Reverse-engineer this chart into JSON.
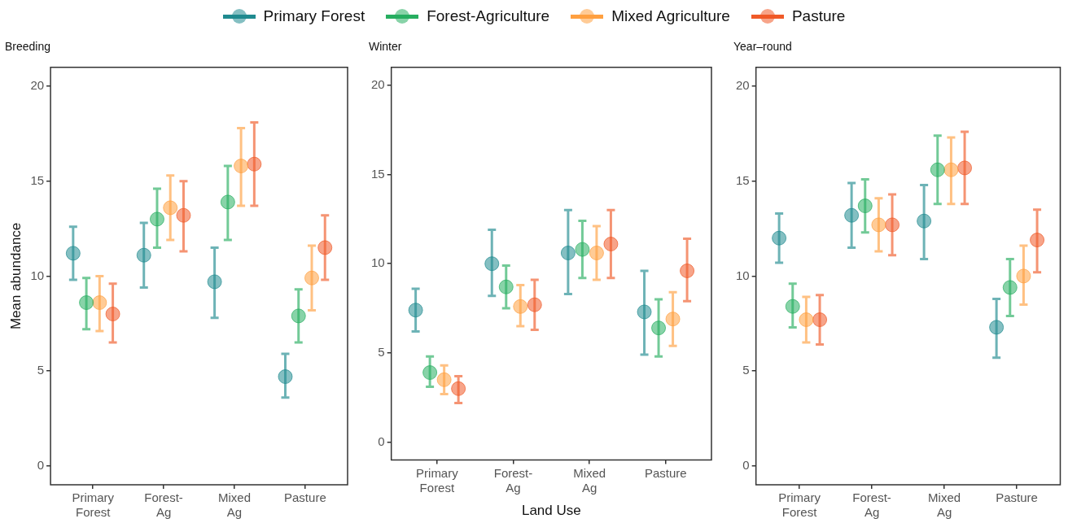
{
  "chart_data": [
    {
      "type": "scatter",
      "title": "Breeding",
      "ylabel": "Mean abundance",
      "categories": [
        "Primary\nForest",
        "Forest-\nAg",
        "Mixed\nAg",
        "Pasture"
      ],
      "ylim": [
        -1,
        21
      ],
      "yticks": [
        0,
        5,
        10,
        15,
        20
      ],
      "grid": false,
      "legend": "top",
      "marker": "circle",
      "series": [
        {
          "name": "Primary Forest",
          "color": "#1f8a8f",
          "values": [
            11.2,
            11.1,
            9.7,
            4.7
          ],
          "errors": [
            [
              9.8,
              12.6
            ],
            [
              9.4,
              12.8
            ],
            [
              7.8,
              11.5
            ],
            [
              3.6,
              5.9
            ]
          ]
        },
        {
          "name": "Forest-Agriculture",
          "color": "#27ae60",
          "values": [
            8.6,
            13.0,
            13.9,
            7.9
          ],
          "errors": [
            [
              7.2,
              9.9
            ],
            [
              11.5,
              14.6
            ],
            [
              11.9,
              15.8
            ],
            [
              6.5,
              9.3
            ]
          ]
        },
        {
          "name": "Mixed Agriculture",
          "color": "#ffa040",
          "values": [
            8.6,
            13.6,
            15.8,
            9.9
          ],
          "errors": [
            [
              7.1,
              10.0
            ],
            [
              11.9,
              15.3
            ],
            [
              13.7,
              17.8
            ],
            [
              8.2,
              11.6
            ]
          ]
        },
        {
          "name": "Pasture",
          "color": "#f05a28",
          "values": [
            8.0,
            13.2,
            15.9,
            11.5
          ],
          "errors": [
            [
              6.5,
              9.6
            ],
            [
              11.3,
              15.0
            ],
            [
              13.7,
              18.1
            ],
            [
              9.8,
              13.2
            ]
          ]
        }
      ]
    },
    {
      "type": "scatter",
      "title": "Winter",
      "xlabel": "Land Use",
      "categories": [
        "Primary\nForest",
        "Forest-\nAg",
        "Mixed\nAg",
        "Pasture"
      ],
      "ylim": [
        -1,
        21
      ],
      "yticks": [
        0,
        5,
        10,
        15,
        20
      ],
      "grid": false,
      "marker": "circle",
      "series": [
        {
          "color": "#1f8a8f",
          "values": [
            7.4,
            10.0,
            10.6,
            7.3
          ],
          "errors": [
            [
              6.2,
              8.6
            ],
            [
              8.2,
              11.9
            ],
            [
              8.3,
              13.0
            ],
            [
              4.9,
              9.6
            ]
          ]
        },
        {
          "color": "#27ae60",
          "values": [
            3.9,
            8.7,
            10.8,
            6.4
          ],
          "errors": [
            [
              3.1,
              4.8
            ],
            [
              7.5,
              9.9
            ],
            [
              9.2,
              12.4
            ],
            [
              4.8,
              8.0
            ]
          ]
        },
        {
          "color": "#ffa040",
          "values": [
            3.5,
            7.6,
            10.6,
            6.9
          ],
          "errors": [
            [
              2.7,
              4.3
            ],
            [
              6.5,
              8.8
            ],
            [
              9.1,
              12.1
            ],
            [
              5.4,
              8.4
            ]
          ]
        },
        {
          "color": "#f05a28",
          "values": [
            3.0,
            7.7,
            11.1,
            9.6
          ],
          "errors": [
            [
              2.2,
              3.7
            ],
            [
              6.3,
              9.1
            ],
            [
              9.2,
              13.0
            ],
            [
              7.9,
              11.4
            ]
          ]
        }
      ]
    },
    {
      "type": "scatter",
      "title": "Year–round",
      "categories": [
        "Primary\nForest",
        "Forest-\nAg",
        "Mixed\nAg",
        "Pasture"
      ],
      "ylim": [
        -1,
        21
      ],
      "yticks": [
        0,
        5,
        10,
        15,
        20
      ],
      "grid": false,
      "marker": "circle",
      "series": [
        {
          "color": "#1f8a8f",
          "values": [
            12.0,
            13.2,
            12.9,
            7.3
          ],
          "errors": [
            [
              10.7,
              13.3
            ],
            [
              11.5,
              14.9
            ],
            [
              10.9,
              14.8
            ],
            [
              5.7,
              8.8
            ]
          ]
        },
        {
          "color": "#27ae60",
          "values": [
            8.4,
            13.7,
            15.6,
            9.4
          ],
          "errors": [
            [
              7.3,
              9.6
            ],
            [
              12.3,
              15.1
            ],
            [
              13.8,
              17.4
            ],
            [
              7.9,
              10.9
            ]
          ]
        },
        {
          "color": "#ffa040",
          "values": [
            7.7,
            12.7,
            15.6,
            10.0
          ],
          "errors": [
            [
              6.5,
              8.9
            ],
            [
              11.3,
              14.1
            ],
            [
              13.8,
              17.3
            ],
            [
              8.5,
              11.6
            ]
          ]
        },
        {
          "color": "#f05a28",
          "values": [
            7.7,
            12.7,
            15.7,
            11.9
          ],
          "errors": [
            [
              6.4,
              9.0
            ],
            [
              11.1,
              14.3
            ],
            [
              13.8,
              17.6
            ],
            [
              10.2,
              13.5
            ]
          ]
        }
      ]
    }
  ]
}
